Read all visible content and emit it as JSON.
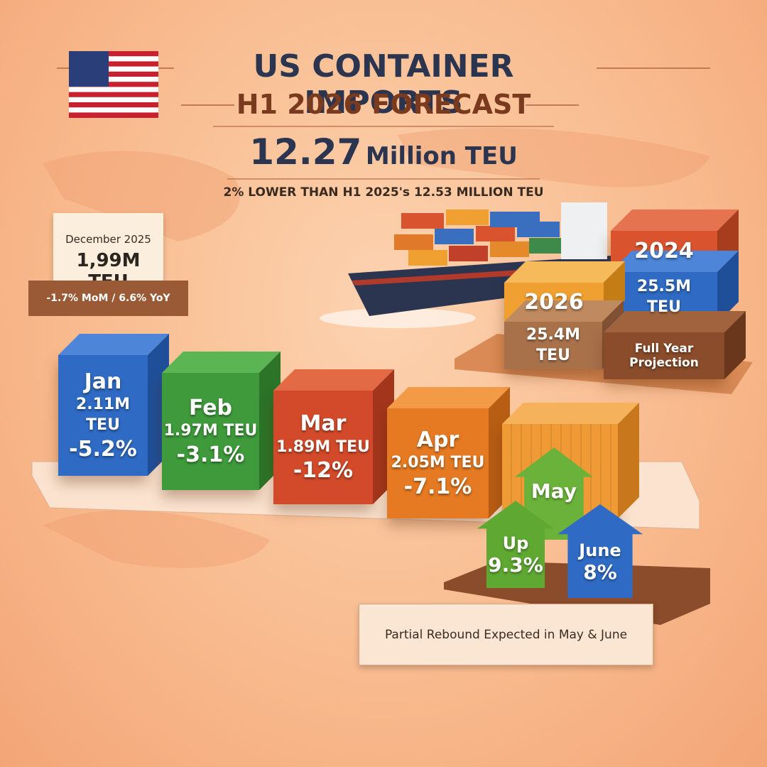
{
  "header": {
    "title": "US CONTAINER IMPORTS",
    "subtitle": "H1 2026 FORECAST",
    "total_value": "12.27",
    "total_unit": "Million TEU",
    "note": "2% LOWER THAN H1 2025's 12.53 MILLION TEU"
  },
  "december": {
    "label": "December 2025",
    "value": "1,99M TEU",
    "change": "-1.7% MoM / 6.6% YoY"
  },
  "months": [
    {
      "name": "Jan",
      "value": "2.11M TEU",
      "change": "-5.2%"
    },
    {
      "name": "Feb",
      "value": "1.97M TEU",
      "change": "-3.1%"
    },
    {
      "name": "Mar",
      "value": "1.89M TEU",
      "change": "-12%"
    },
    {
      "name": "Apr",
      "value": "2.05M TEU",
      "change": "-7.1%"
    }
  ],
  "rebound": {
    "may": "May",
    "up_label": "Up",
    "up_value": "9.3%",
    "june": "June",
    "june_value": "8%",
    "caption": "Partial Rebound Expected in May & June"
  },
  "projection": {
    "year_2024": "2024",
    "value_2024": "25.5M TEU",
    "year_2026": "2026",
    "value_2026": "25.4M TEU",
    "caption": "Full Year Projection"
  }
}
